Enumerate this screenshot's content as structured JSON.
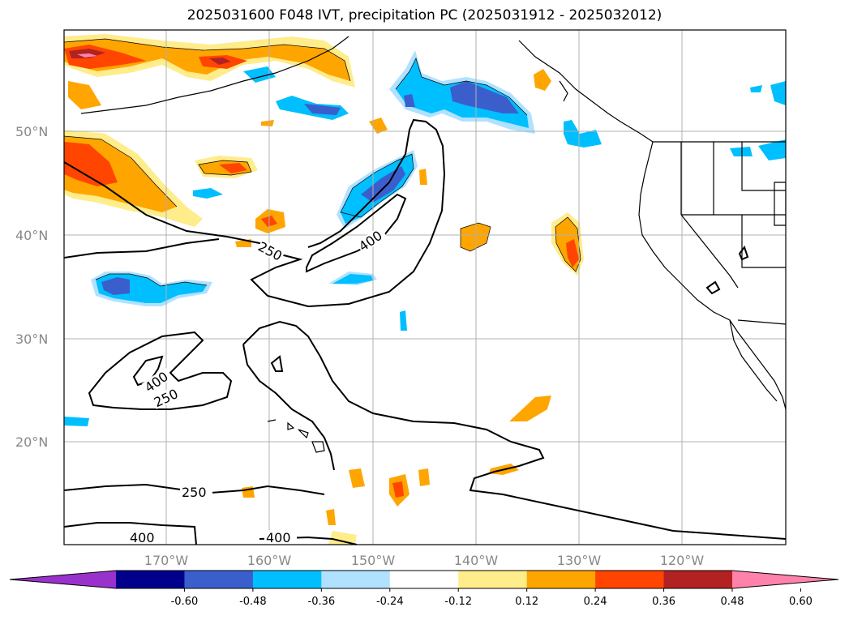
{
  "title": "2025031600 F048 IVT, precipitation PC (2025031912 - 2025032012)",
  "map": {
    "lat_labels": [
      "50°N",
      "40°N",
      "30°N",
      "20°N"
    ],
    "lon_labels": [
      "170°W",
      "160°W",
      "150°W",
      "140°W",
      "130°W",
      "120°W"
    ],
    "contour_labels": [
      "250",
      "400",
      "400",
      "250",
      "250",
      "400",
      "400"
    ]
  },
  "colorbar": {
    "ticks": [
      "-0.60",
      "-0.48",
      "-0.36",
      "-0.24",
      "-0.12",
      "0.12",
      "0.24",
      "0.36",
      "0.48",
      "0.60"
    ],
    "colors": [
      "#9932cc",
      "#00008b",
      "#3a5fcd",
      "#00bfff",
      "#b0e2ff",
      "#ffffff",
      "#ffec8b",
      "#ffa500",
      "#ff4500",
      "#b22222",
      "#ff82ab"
    ]
  },
  "colors": {
    "fill_pos1": "#ffec8b",
    "fill_pos2": "#ffa500",
    "fill_pos3": "#ff4500",
    "fill_pos4": "#b22222",
    "fill_pos5": "#ff82ab",
    "fill_neg1": "#b0e2ff",
    "fill_neg2": "#00bfff",
    "fill_neg3": "#3a5fcd"
  }
}
